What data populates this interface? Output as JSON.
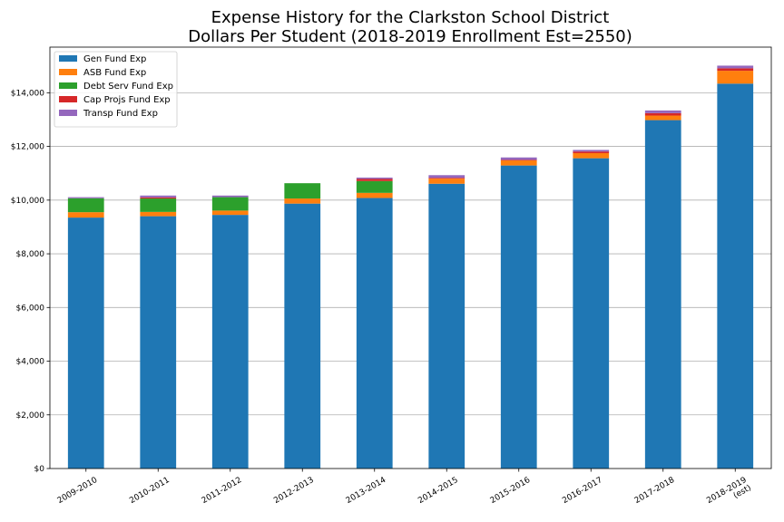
{
  "chart_data": {
    "type": "bar",
    "stacked": true,
    "title": "Expense History for the Clarkston School District",
    "subtitle": "Dollars Per Student (2018-2019 Enrollment Est=2550)",
    "xlabel": "",
    "ylabel": "",
    "ylim": [
      0,
      15700
    ],
    "yticks": [
      0,
      2000,
      4000,
      6000,
      8000,
      10000,
      12000,
      14000
    ],
    "ytick_labels": [
      "$0",
      "$2,000",
      "$4,000",
      "$6,000",
      "$8,000",
      "$10,000",
      "$12,000",
      "$14,000"
    ],
    "grid": "horizontal",
    "legend_position": "top-left",
    "categories": [
      "2009-2010",
      "2010-2011",
      "2011-2012",
      "2012-2013",
      "2013-2014",
      "2014-2015",
      "2015-2016",
      "2016-2017",
      "2017-2018",
      "2018-2019\n(est)"
    ],
    "series": [
      {
        "name": "Gen Fund Exp",
        "color": "#1f77b4",
        "values": [
          9350,
          9400,
          9450,
          9870,
          10080,
          10610,
          11290,
          11560,
          12980,
          14340
        ]
      },
      {
        "name": "ASB Fund Exp",
        "color": "#ff7f0e",
        "values": [
          200,
          160,
          160,
          190,
          190,
          190,
          190,
          190,
          170,
          480
        ]
      },
      {
        "name": "Debt Serv Fund Exp",
        "color": "#2ca02c",
        "values": [
          520,
          500,
          500,
          570,
          440,
          0,
          0,
          0,
          0,
          0
        ]
      },
      {
        "name": "Cap Projs Fund Exp",
        "color": "#d62728",
        "values": [
          0,
          40,
          0,
          0,
          80,
          30,
          20,
          60,
          90,
          90
        ]
      },
      {
        "name": "Transp Fund Exp",
        "color": "#9467bd",
        "values": [
          40,
          70,
          60,
          0,
          50,
          100,
          90,
          60,
          100,
          100
        ]
      }
    ]
  }
}
